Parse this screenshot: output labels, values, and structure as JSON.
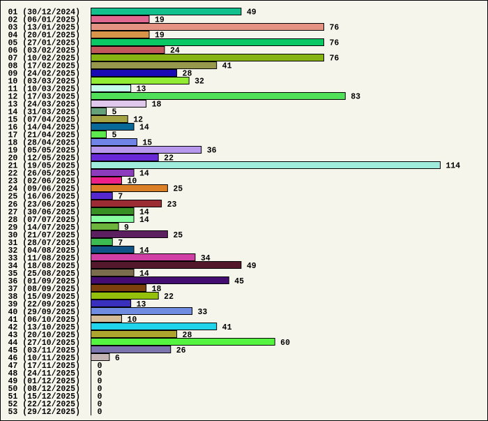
{
  "chart_data": {
    "type": "bar",
    "orientation": "horizontal",
    "title": "",
    "xlabel": "",
    "ylabel": "",
    "xlim": [
      0,
      114
    ],
    "grid": false,
    "categories": [
      "01 (30/12/2024)",
      "02 (06/01/2025)",
      "03 (13/01/2025)",
      "04 (20/01/2025)",
      "05 (27/01/2025)",
      "06 (03/02/2025)",
      "07 (10/02/2025)",
      "08 (17/02/2025)",
      "09 (24/02/2025)",
      "10 (03/03/2025)",
      "11 (10/03/2025)",
      "12 (17/03/2025)",
      "13 (24/03/2025)",
      "14 (31/03/2025)",
      "15 (07/04/2025)",
      "16 (14/04/2025)",
      "17 (21/04/2025)",
      "18 (28/04/2025)",
      "19 (05/05/2025)",
      "20 (12/05/2025)",
      "21 (19/05/2025)",
      "22 (26/05/2025)",
      "23 (02/06/2025)",
      "24 (09/06/2025)",
      "25 (16/06/2025)",
      "26 (23/06/2025)",
      "27 (30/06/2025)",
      "28 (07/07/2025)",
      "29 (14/07/2025)",
      "30 (21/07/2025)",
      "31 (28/07/2025)",
      "32 (04/08/2025)",
      "33 (11/08/2025)",
      "34 (18/08/2025)",
      "35 (25/08/2025)",
      "36 (01/09/2025)",
      "37 (08/09/2025)",
      "38 (15/09/2025)",
      "39 (22/09/2025)",
      "40 (29/09/2025)",
      "41 (06/10/2025)",
      "42 (13/10/2025)",
      "43 (20/10/2025)",
      "44 (27/10/2025)",
      "45 (03/11/2025)",
      "46 (10/11/2025)",
      "47 (17/11/2025)",
      "48 (24/11/2025)",
      "49 (01/12/2025)",
      "50 (08/12/2025)",
      "51 (15/12/2025)",
      "52 (22/12/2025)",
      "53 (29/12/2025)"
    ],
    "values": [
      49,
      19,
      76,
      19,
      76,
      24,
      76,
      41,
      28,
      32,
      13,
      83,
      18,
      5,
      12,
      14,
      5,
      15,
      36,
      22,
      114,
      14,
      10,
      25,
      7,
      23,
      14,
      14,
      9,
      25,
      7,
      14,
      34,
      49,
      14,
      45,
      18,
      22,
      13,
      33,
      10,
      41,
      28,
      60,
      26,
      6,
      0,
      0,
      0,
      0,
      0,
      0,
      0
    ],
    "colors": [
      "#12c08e",
      "#e06890",
      "#e49282",
      "#d89448",
      "#0ac864",
      "#c0585c",
      "#86b412",
      "#98984c",
      "#1a0ab4",
      "#92ec34",
      "#c4fcec",
      "#50e05a",
      "#e0c8ec",
      "#64a078",
      "#a4a444",
      "#086898",
      "#5ce84c",
      "#7084e8",
      "#b898ec",
      "#6828d8",
      "#a0ecdc",
      "#8c3cbc",
      "#ec2088",
      "#dc8028",
      "#5428cc",
      "#9c2c34",
      "#389024",
      "#88fca0",
      "#6cb43c",
      "#5c2060",
      "#3cbc50",
      "#105488",
      "#d040a4",
      "#54182c",
      "#7a6c4c",
      "#440c70",
      "#7c400c",
      "#94c00c",
      "#3830bc",
      "#708ce0",
      "#d4bc98",
      "#20d4ec",
      "#aca42c",
      "#54f440",
      "#7c74ac",
      "#c4b4b4",
      "#c4b4b4",
      "#c4b4b4",
      "#c4b4b4",
      "#c4b4b4",
      "#c4b4b4",
      "#c4b4b4",
      "#c4b4b4"
    ],
    "background": "#f5f5eb"
  }
}
